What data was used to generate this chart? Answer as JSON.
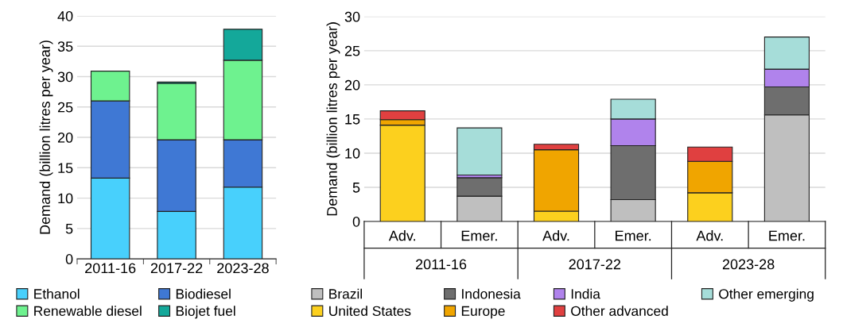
{
  "chart_data": [
    {
      "type": "bar",
      "stacked": true,
      "ylabel": "Demand (billion litres per year)",
      "categories": [
        "2011-16",
        "2017-22",
        "2023-28"
      ],
      "ylim": [
        0,
        40
      ],
      "yticks": [
        0,
        5,
        10,
        15,
        20,
        25,
        30,
        35,
        40
      ],
      "grid": "y",
      "legend": "bottom",
      "series": [
        {
          "name": "Ethanol",
          "color": "#48d0fc",
          "values": [
            13.3,
            7.8,
            11.8
          ]
        },
        {
          "name": "Biodiesel",
          "color": "#3f78d4",
          "values": [
            12.7,
            11.8,
            7.8
          ]
        },
        {
          "name": "Renewable diesel",
          "color": "#6ef28f",
          "values": [
            4.9,
            9.3,
            13.1
          ]
        },
        {
          "name": "Biojet fuel",
          "color": "#14a89a",
          "values": [
            null,
            0.2,
            5.1
          ]
        }
      ]
    },
    {
      "type": "bar",
      "stacked": true,
      "ylabel": "Demand (billion litres per year)",
      "categories": [
        "Adv.",
        "Emer.",
        "Adv.",
        "Emer.",
        "Adv.",
        "Emer."
      ],
      "annotations": [
        "2011-16",
        "2017-22",
        "2023-28"
      ],
      "ylim": [
        0,
        30
      ],
      "yticks": [
        0,
        5,
        10,
        15,
        20,
        25,
        30
      ],
      "grid": "y",
      "legend": "bottom",
      "series": [
        {
          "name": "Brazil",
          "color": "#bfbfbf",
          "values": [
            null,
            3.7,
            null,
            3.2,
            null,
            15.6
          ]
        },
        {
          "name": "Indonesia",
          "color": "#6e6e6e",
          "values": [
            null,
            2.7,
            null,
            7.9,
            null,
            4.1
          ]
        },
        {
          "name": "India",
          "color": "#b083ec",
          "values": [
            null,
            0.4,
            null,
            3.9,
            null,
            2.6
          ]
        },
        {
          "name": "Other emerging",
          "color": "#a6ddd9",
          "values": [
            null,
            6.9,
            null,
            2.9,
            null,
            4.7
          ]
        },
        {
          "name": "United States",
          "color": "#fcd01e",
          "values": [
            14.1,
            null,
            1.5,
            null,
            4.2,
            null
          ]
        },
        {
          "name": "Europe",
          "color": "#f0a500",
          "values": [
            0.8,
            null,
            9.0,
            null,
            4.6,
            null
          ]
        },
        {
          "name": "Other advanced",
          "color": "#e04040",
          "values": [
            1.3,
            null,
            0.8,
            null,
            2.1,
            null
          ]
        }
      ]
    }
  ]
}
